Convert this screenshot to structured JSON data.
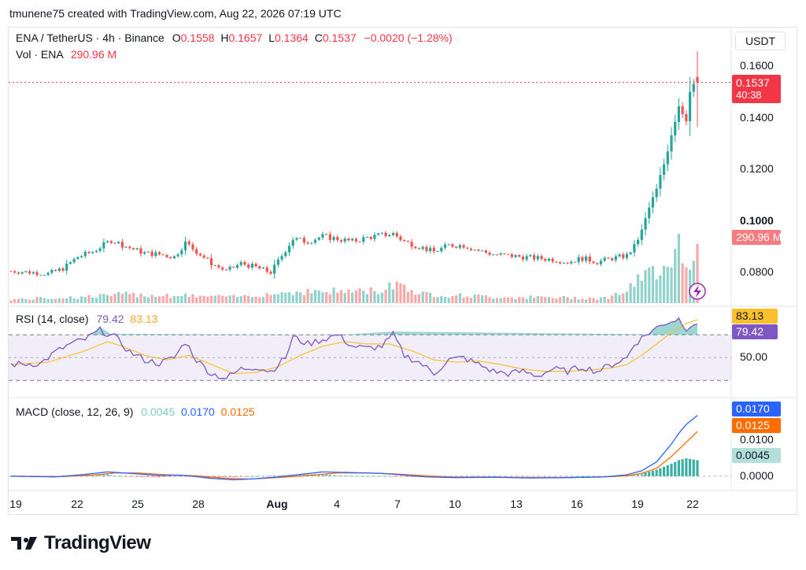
{
  "credit": "tmunene75 created with TradingView.com, Aug 22, 2026 07:19 UTC",
  "header": {
    "symbol": "ENA / TetherUS · 4h · Binance",
    "o_label": "O",
    "o_value": "0.1558",
    "h_label": "H",
    "h_value": "0.1657",
    "l_label": "L",
    "l_value": "0.1364",
    "c_label": "C",
    "c_value": "0.1537",
    "change": "−0.0020 (−1.28%)",
    "vol_label": "Vol · ENA",
    "vol_value": "290.96 M"
  },
  "currency_button": "USDT",
  "price_tag": {
    "price": "0.1537",
    "countdown": "40:38"
  },
  "volume_tag": "290.96 M",
  "rsi_header": {
    "label": "RSI (14, close)",
    "rsi_value": "79.42",
    "ma_value": "83.13"
  },
  "rsi_tags": {
    "ma": "83.13",
    "rsi": "79.42"
  },
  "macd_header": {
    "label": "MACD (close, 12, 26, 9)",
    "hist": "0.0045",
    "macd": "0.0170",
    "signal": "0.0125"
  },
  "macd_tags": {
    "macd": "0.0170",
    "signal": "0.0125",
    "hist": "0.0045"
  },
  "brand": "TradingView",
  "colors": {
    "up": "#26a69a",
    "down": "#ef5350",
    "rsi": "#7e57c2",
    "rsi_ma": "#fbc02d",
    "macd": "#2962ff",
    "signal": "#ff6d00",
    "hist_light": "#b2dfdb",
    "price_tag": "#f23645"
  },
  "chart_data": [
    {
      "type": "candlestick",
      "title": "ENA / TetherUS · 4h · Binance",
      "x_tick_labels": [
        "19",
        "22",
        "25",
        "28",
        "Aug",
        "4",
        "7",
        "10",
        "13",
        "16",
        "19",
        "22"
      ],
      "y_tick_labels": [
        "0.1600",
        "0.1400",
        "0.1200",
        "0.1000",
        "0.0800"
      ],
      "ylim": [
        0.068,
        0.166
      ],
      "last": {
        "open": 0.1558,
        "high": 0.1657,
        "low": 0.1364,
        "close": 0.1537
      },
      "close_path": [
        [
          0,
          0.0805
        ],
        [
          6,
          0.08
        ],
        [
          10,
          0.0795
        ],
        [
          14,
          0.0815
        ],
        [
          18,
          0.086
        ],
        [
          22,
          0.088
        ],
        [
          27,
          0.0925
        ],
        [
          32,
          0.0895
        ],
        [
          36,
          0.0875
        ],
        [
          40,
          0.087
        ],
        [
          44,
          0.086
        ],
        [
          47,
          0.0915
        ],
        [
          51,
          0.087
        ],
        [
          54,
          0.0835
        ],
        [
          58,
          0.0805
        ],
        [
          62,
          0.0835
        ],
        [
          66,
          0.082
        ],
        [
          70,
          0.08
        ],
        [
          76,
          0.093
        ],
        [
          80,
          0.092
        ],
        [
          84,
          0.094
        ],
        [
          88,
          0.093
        ],
        [
          92,
          0.092
        ],
        [
          96,
          0.0935
        ],
        [
          100,
          0.0945
        ],
        [
          103,
          0.095
        ],
        [
          106,
          0.092
        ],
        [
          110,
          0.09
        ],
        [
          114,
          0.088
        ],
        [
          118,
          0.0905
        ],
        [
          122,
          0.0905
        ],
        [
          126,
          0.0885
        ],
        [
          130,
          0.087
        ],
        [
          134,
          0.0865
        ],
        [
          138,
          0.086
        ],
        [
          142,
          0.0855
        ],
        [
          146,
          0.085
        ],
        [
          150,
          0.084
        ],
        [
          154,
          0.0855
        ],
        [
          158,
          0.084
        ],
        [
          162,
          0.0855
        ],
        [
          166,
          0.0865
        ],
        [
          168,
          0.09
        ],
        [
          170,
          0.096
        ],
        [
          172,
          0.105
        ],
        [
          174,
          0.112
        ],
        [
          176,
          0.122
        ],
        [
          178,
          0.134
        ],
        [
          180,
          0.145
        ],
        [
          182,
          0.14
        ],
        [
          183,
          0.15
        ],
        [
          185,
          0.1537
        ]
      ]
    },
    {
      "type": "bar",
      "title": "Vol · ENA",
      "last_value_label": "290.96 M",
      "volume_path": [
        [
          0,
          0.06
        ],
        [
          20,
          0.1
        ],
        [
          30,
          0.14
        ],
        [
          45,
          0.12
        ],
        [
          60,
          0.1
        ],
        [
          76,
          0.18
        ],
        [
          100,
          0.2
        ],
        [
          104,
          0.35
        ],
        [
          110,
          0.15
        ],
        [
          130,
          0.1
        ],
        [
          160,
          0.08
        ],
        [
          166,
          0.2
        ],
        [
          170,
          0.4
        ],
        [
          174,
          0.55
        ],
        [
          178,
          0.75
        ],
        [
          180,
          1.0
        ],
        [
          182,
          0.65
        ],
        [
          183,
          0.5
        ],
        [
          185,
          0.95
        ]
      ]
    },
    {
      "type": "line",
      "title": "RSI (14, close)",
      "y_tick_labels": [
        "50.00"
      ],
      "ylim": [
        15,
        95
      ],
      "bands": [
        30,
        50,
        70
      ],
      "series": [
        {
          "name": "RSI",
          "last": 79.42,
          "path": [
            [
              0,
              44
            ],
            [
              8,
              45
            ],
            [
              12,
              55
            ],
            [
              16,
              62
            ],
            [
              20,
              66
            ],
            [
              24,
              74
            ],
            [
              28,
              68
            ],
            [
              32,
              55
            ],
            [
              36,
              48
            ],
            [
              40,
              45
            ],
            [
              44,
              50
            ],
            [
              47,
              64
            ],
            [
              50,
              48
            ],
            [
              54,
              36
            ],
            [
              58,
              32
            ],
            [
              62,
              40
            ],
            [
              66,
              42
            ],
            [
              70,
              38
            ],
            [
              74,
              50
            ],
            [
              76,
              68
            ],
            [
              80,
              62
            ],
            [
              84,
              66
            ],
            [
              88,
              70
            ],
            [
              92,
              60
            ],
            [
              96,
              58
            ],
            [
              100,
              60
            ],
            [
              103,
              70
            ],
            [
              106,
              52
            ],
            [
              110,
              46
            ],
            [
              114,
              36
            ],
            [
              118,
              48
            ],
            [
              122,
              50
            ],
            [
              126,
              44
            ],
            [
              130,
              38
            ],
            [
              134,
              36
            ],
            [
              138,
              38
            ],
            [
              142,
              34
            ],
            [
              146,
              40
            ],
            [
              150,
              38
            ],
            [
              154,
              42
            ],
            [
              158,
              38
            ],
            [
              162,
              44
            ],
            [
              166,
              50
            ],
            [
              168,
              62
            ],
            [
              172,
              72
            ],
            [
              176,
              80
            ],
            [
              180,
              84
            ],
            [
              182,
              76
            ],
            [
              184,
              80
            ],
            [
              185,
              79.42
            ]
          ]
        },
        {
          "name": "RSI-based MA",
          "last": 83.13,
          "path": [
            [
              0,
              44
            ],
            [
              10,
              46
            ],
            [
              20,
              56
            ],
            [
              26,
              64
            ],
            [
              30,
              60
            ],
            [
              36,
              52
            ],
            [
              42,
              48
            ],
            [
              48,
              52
            ],
            [
              54,
              44
            ],
            [
              60,
              36
            ],
            [
              66,
              37
            ],
            [
              72,
              42
            ],
            [
              78,
              52
            ],
            [
              84,
              60
            ],
            [
              90,
              64
            ],
            [
              96,
              62
            ],
            [
              102,
              62
            ],
            [
              108,
              56
            ],
            [
              114,
              48
            ],
            [
              120,
              46
            ],
            [
              126,
              47
            ],
            [
              132,
              44
            ],
            [
              138,
              40
            ],
            [
              144,
              38
            ],
            [
              150,
              38
            ],
            [
              156,
              39
            ],
            [
              162,
              41
            ],
            [
              166,
              44
            ],
            [
              170,
              52
            ],
            [
              174,
              62
            ],
            [
              178,
              72
            ],
            [
              182,
              80
            ],
            [
              185,
              83.13
            ]
          ]
        }
      ]
    },
    {
      "type": "line",
      "title": "MACD (close, 12, 26, 9)",
      "y_tick_labels": [
        "0.0000",
        "0.0100"
      ],
      "ylim": [
        -0.004,
        0.022
      ],
      "series": [
        {
          "name": "MACD",
          "last": 0.017,
          "path": [
            [
              0,
              0
            ],
            [
              12,
              -0.0002
            ],
            [
              20,
              0.0005
            ],
            [
              26,
              0.0012
            ],
            [
              32,
              0.0008
            ],
            [
              40,
              0.0002
            ],
            [
              46,
              0.0003
            ],
            [
              54,
              -0.0006
            ],
            [
              60,
              -0.001
            ],
            [
              66,
              -0.0007
            ],
            [
              72,
              -0.0002
            ],
            [
              78,
              0.0005
            ],
            [
              84,
              0.0012
            ],
            [
              92,
              0.001
            ],
            [
              100,
              0.0008
            ],
            [
              106,
              0.0003
            ],
            [
              112,
              -0.0002
            ],
            [
              120,
              -0.0004
            ],
            [
              130,
              -0.0003
            ],
            [
              140,
              -0.0005
            ],
            [
              150,
              -0.0004
            ],
            [
              160,
              -0.0002
            ],
            [
              166,
              0.0004
            ],
            [
              170,
              0.0015
            ],
            [
              174,
              0.004
            ],
            [
              178,
              0.009
            ],
            [
              180,
              0.012
            ],
            [
              182,
              0.0145
            ],
            [
              185,
              0.017
            ]
          ]
        },
        {
          "name": "Signal",
          "last": 0.0125,
          "path": [
            [
              0,
              0
            ],
            [
              14,
              -0.0001
            ],
            [
              22,
              0.0003
            ],
            [
              28,
              0.0009
            ],
            [
              34,
              0.0009
            ],
            [
              42,
              0.0004
            ],
            [
              50,
              0.0001
            ],
            [
              58,
              -0.0006
            ],
            [
              64,
              -0.0008
            ],
            [
              72,
              -0.0004
            ],
            [
              80,
              0.0002
            ],
            [
              88,
              0.0009
            ],
            [
              96,
              0.0009
            ],
            [
              104,
              0.0006
            ],
            [
              112,
              0.0001
            ],
            [
              120,
              -0.0003
            ],
            [
              130,
              -0.0003
            ],
            [
              140,
              -0.0004
            ],
            [
              150,
              -0.0004
            ],
            [
              160,
              -0.0002
            ],
            [
              166,
              0.0001
            ],
            [
              170,
              0.0008
            ],
            [
              174,
              0.0022
            ],
            [
              178,
              0.0055
            ],
            [
              180,
              0.0075
            ],
            [
              182,
              0.0095
            ],
            [
              185,
              0.0125
            ]
          ]
        },
        {
          "name": "Histogram",
          "last": 0.0045
        }
      ]
    }
  ]
}
